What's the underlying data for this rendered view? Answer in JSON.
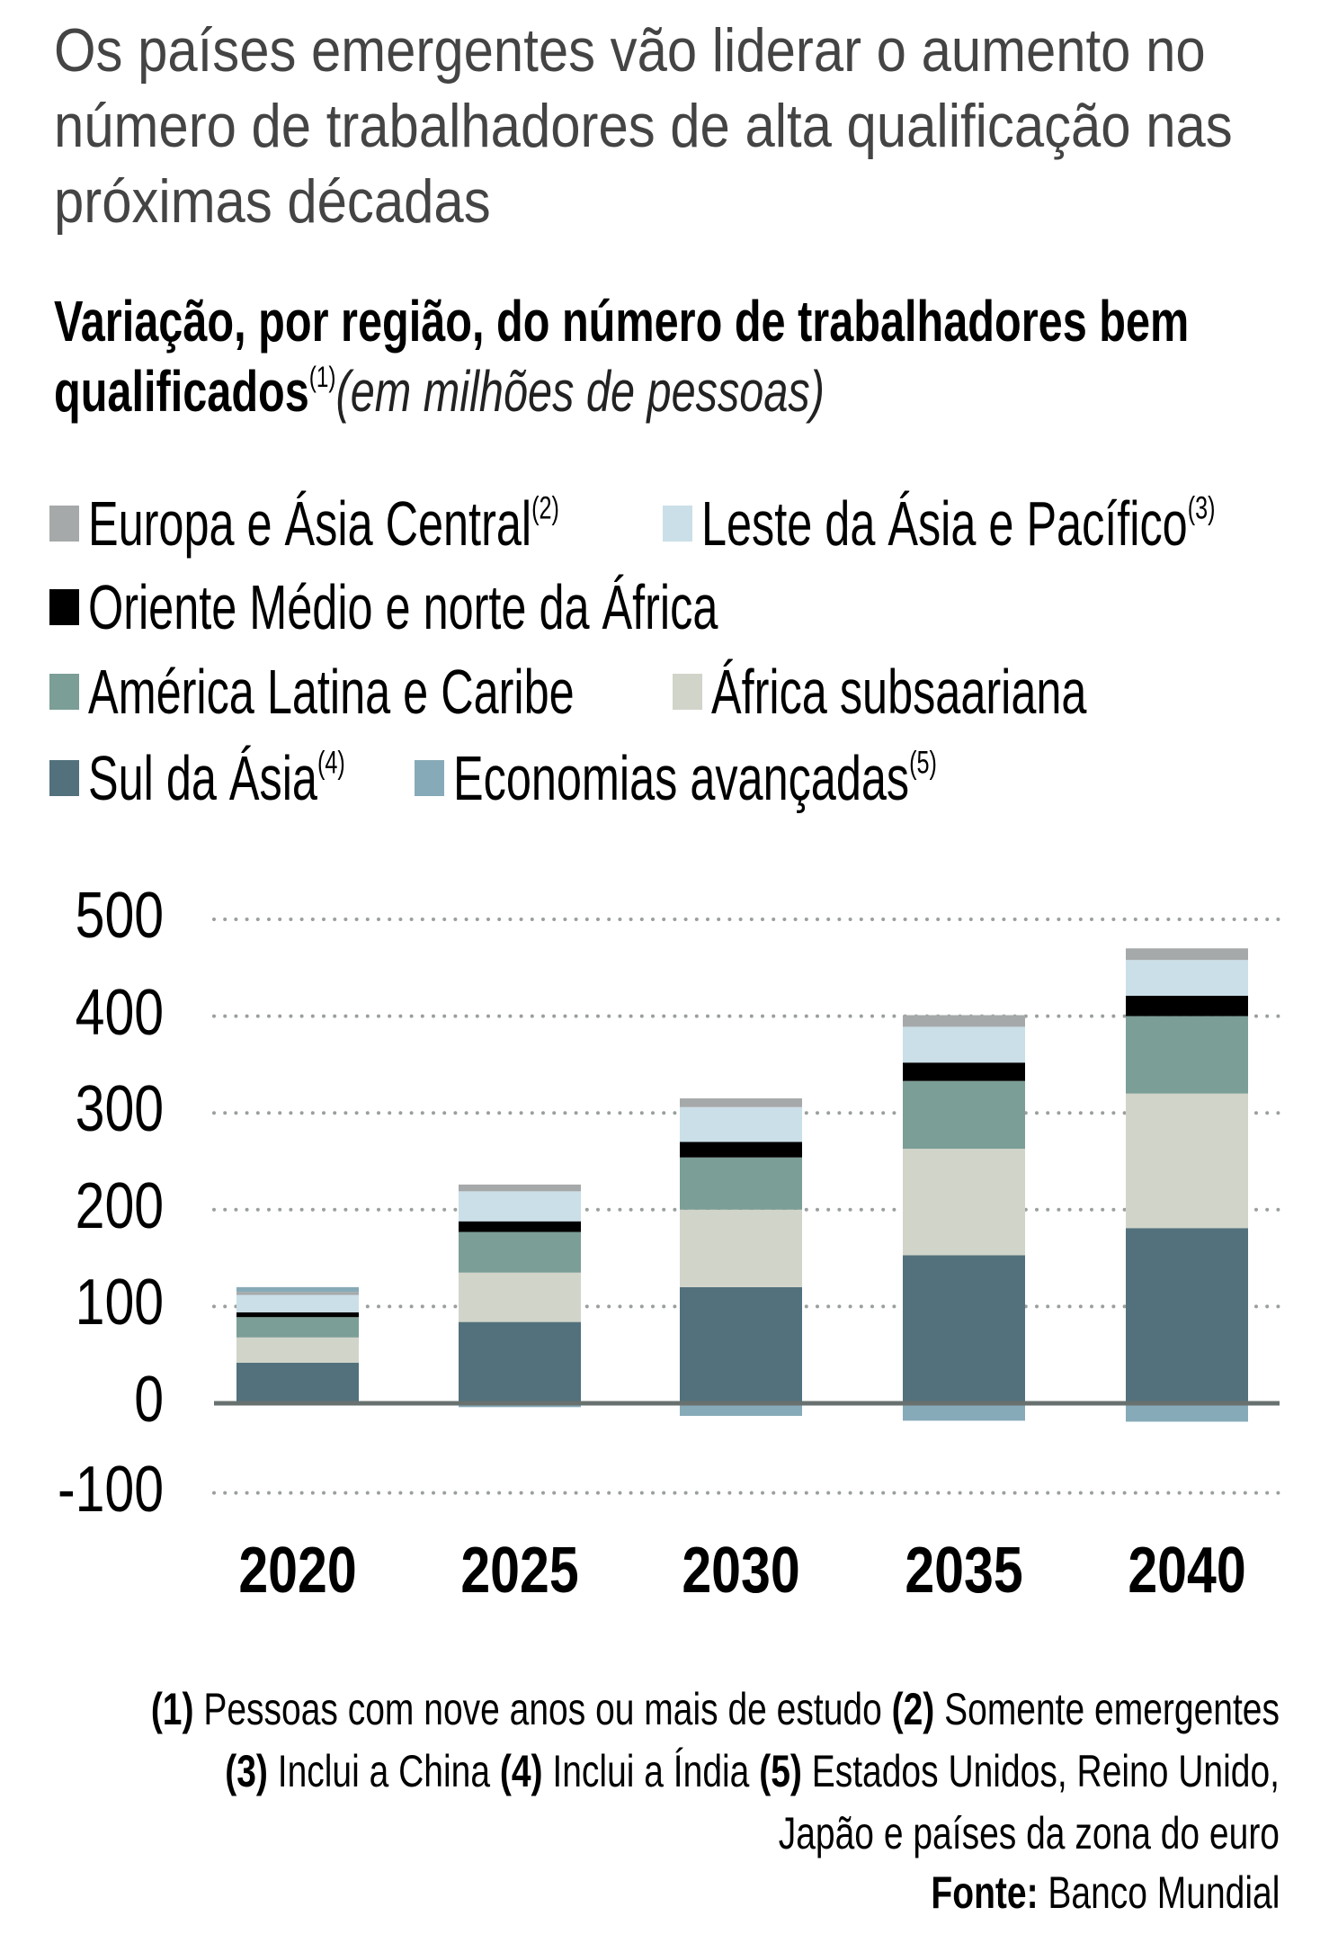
{
  "title": "Os países emergentes vão liderar o aumento no número de trabalhadores de alta qualificação nas próximas décadas",
  "subtitle": {
    "text": "Variação, por região, do número de trabalhadores bem qualificados",
    "sup": "(1)",
    "unit": "(em milhões de pessoas)"
  },
  "legend": [
    {
      "label": "Europa e Ásia Central",
      "sup": "(2)",
      "color": "#a6a9aa"
    },
    {
      "label": "Leste da Ásia e Pacífico",
      "sup": "(3)",
      "color": "#cadfe8"
    },
    {
      "label": "Oriente Médio e norte da África",
      "sup": "",
      "color": "#000000"
    },
    {
      "label": "América Latina e Caribe",
      "sup": "",
      "color": "#7b9e96"
    },
    {
      "label": "África subsaariana",
      "sup": "",
      "color": "#d1d4c9"
    },
    {
      "label": "Sul da Ásia",
      "sup": "(4)",
      "color": "#52717c"
    },
    {
      "label": "Economias avançadas",
      "sup": "(5)",
      "color": "#87aab8"
    }
  ],
  "notes": [
    {
      "num": "(1)",
      "text": " Pessoas com nove anos ou mais de estudo "
    },
    {
      "num": "(2)",
      "text": " Somente emergentes "
    },
    {
      "num": "(3)",
      "text": " Inclui a China "
    },
    {
      "num": "(4)",
      "text": " Inclui a Índia "
    },
    {
      "num": "(5)",
      "text": " Estados Unidos, Reino Unido, Japão e países da zona do euro"
    }
  ],
  "source": {
    "label": "Fonte:",
    "text": " Banco Mundial"
  },
  "chart_data": {
    "type": "bar",
    "stacked": true,
    "title": "Variação, por região, do número de trabalhadores bem qualificados (em milhões de pessoas)",
    "categories": [
      "2020",
      "2025",
      "2030",
      "2035",
      "2040"
    ],
    "yticks": [
      "500",
      "400",
      "300",
      "200",
      "100",
      "0",
      "-100"
    ],
    "ylim": [
      -100,
      500
    ],
    "grid": true,
    "series": [
      {
        "name": "Sul da Ásia",
        "color": "#52717c",
        "values": [
          42,
          84,
          120,
          153,
          181
        ]
      },
      {
        "name": "África subsaariana",
        "color": "#d1d4c9",
        "values": [
          26,
          51,
          80,
          110,
          139
        ]
      },
      {
        "name": "América Latina e Caribe",
        "color": "#7b9e96",
        "values": [
          21,
          42,
          54,
          70,
          80
        ]
      },
      {
        "name": "Oriente Médio e norte da África",
        "color": "#000000",
        "values": [
          5,
          11,
          16,
          19,
          21
        ]
      },
      {
        "name": "Leste da Ásia e Pacífico",
        "color": "#cadfe8",
        "values": [
          18,
          31,
          36,
          37,
          37
        ]
      },
      {
        "name": "Europa e Ásia Central",
        "color": "#a6a9aa",
        "values": [
          3,
          7,
          9,
          12,
          12
        ]
      },
      {
        "name": "Economias avançadas",
        "color": "#87aab8",
        "values": [
          5,
          -4,
          -13,
          -18,
          -19
        ]
      }
    ]
  }
}
